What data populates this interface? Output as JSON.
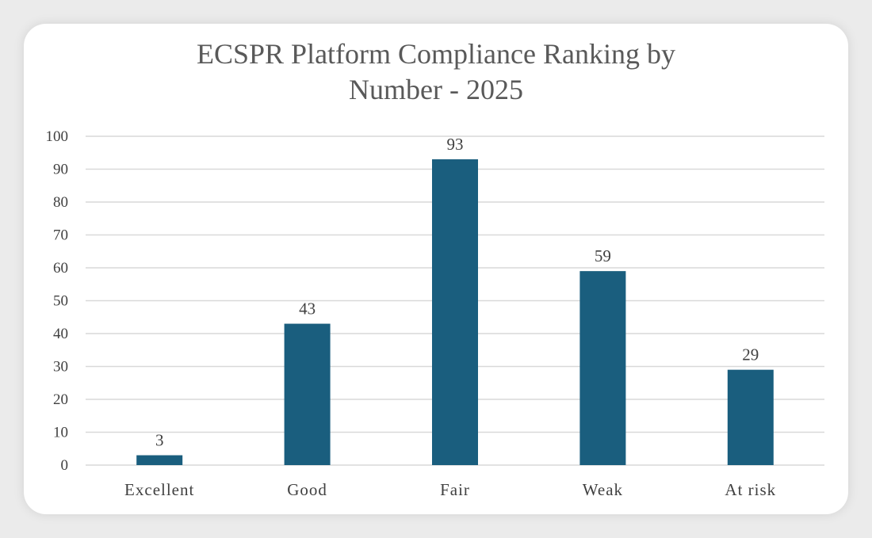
{
  "chart_data": {
    "type": "bar",
    "title_lines": [
      "ECSPR Platform Compliance Ranking by",
      "Number - 2025"
    ],
    "categories": [
      "Excellent",
      "Good",
      "Fair",
      "Weak",
      "At risk"
    ],
    "values": [
      3,
      43,
      93,
      59,
      29
    ],
    "data_labels": [
      "3",
      "43",
      "93",
      "59",
      "29"
    ],
    "ylim": [
      0,
      100
    ],
    "yticks": [
      0,
      10,
      20,
      30,
      40,
      50,
      60,
      70,
      80,
      90,
      100
    ],
    "xlabel": "",
    "ylabel": "",
    "grid": true,
    "legend": "none",
    "bar_color": "#1a5e7e",
    "gridline_color": "#d9d9d9"
  }
}
